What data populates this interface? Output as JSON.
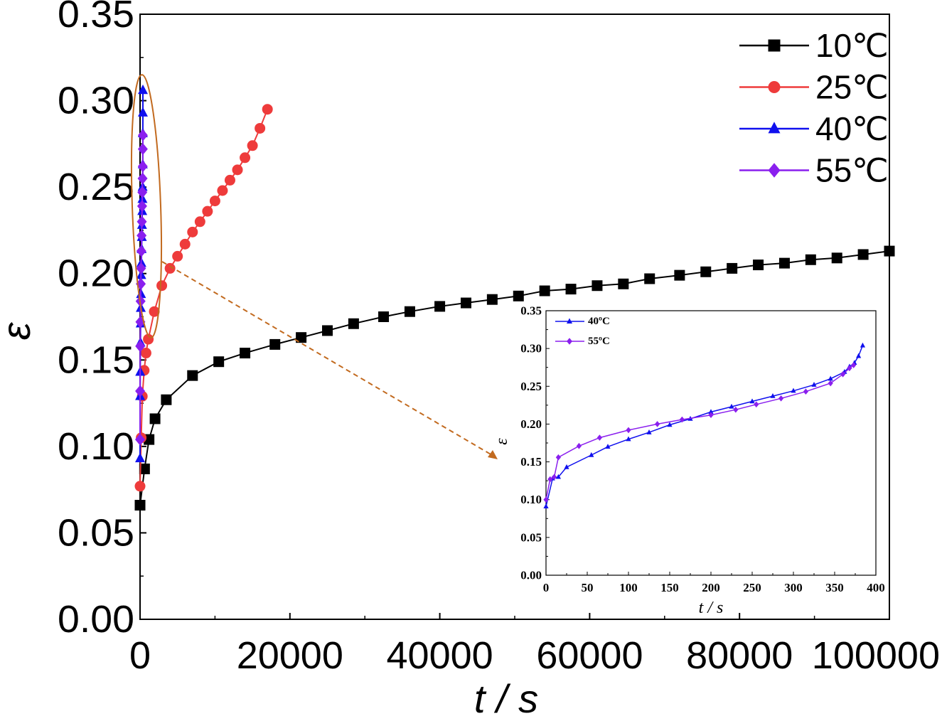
{
  "chart_data": [
    {
      "type": "line",
      "xlabel": "t / s",
      "ylabel": "ε",
      "xlim": [
        0,
        100000
      ],
      "ylim": [
        0,
        0.35
      ],
      "xticks": [
        "0",
        "20000",
        "40000",
        "60000",
        "80000",
        "100000"
      ],
      "yticks": [
        "0.00",
        "0.05",
        "0.10",
        "0.15",
        "0.20",
        "0.25",
        "0.30",
        "0.35"
      ],
      "legend_position": "top-right",
      "series": [
        {
          "name": "10℃",
          "color": "#000000",
          "marker": "square",
          "points": [
            [
              0,
              0.066
            ],
            [
              600,
              0.087
            ],
            [
              1200,
              0.104
            ],
            [
              2000,
              0.116
            ],
            [
              3500,
              0.127
            ],
            [
              7000,
              0.141
            ],
            [
              10500,
              0.149
            ],
            [
              14000,
              0.154
            ],
            [
              18000,
              0.159
            ],
            [
              21500,
              0.163
            ],
            [
              25000,
              0.167
            ],
            [
              28500,
              0.171
            ],
            [
              32500,
              0.175
            ],
            [
              36000,
              0.178
            ],
            [
              40000,
              0.181
            ],
            [
              43500,
              0.183
            ],
            [
              47000,
              0.185
            ],
            [
              50500,
              0.187
            ],
            [
              54000,
              0.19
            ],
            [
              57500,
              0.191
            ],
            [
              61000,
              0.193
            ],
            [
              64500,
              0.194
            ],
            [
              68000,
              0.197
            ],
            [
              72000,
              0.199
            ],
            [
              75500,
              0.201
            ],
            [
              79000,
              0.203
            ],
            [
              82500,
              0.205
            ],
            [
              86000,
              0.206
            ],
            [
              89500,
              0.208
            ],
            [
              93000,
              0.209
            ],
            [
              96500,
              0.211
            ],
            [
              100000,
              0.213
            ]
          ]
        },
        {
          "name": "25℃",
          "color": "#ee3b3b",
          "marker": "circle",
          "points": [
            [
              0,
              0.077
            ],
            [
              150,
              0.105
            ],
            [
              300,
              0.129
            ],
            [
              550,
              0.144
            ],
            [
              800,
              0.154
            ],
            [
              1100,
              0.162
            ],
            [
              1900,
              0.178
            ],
            [
              2900,
              0.193
            ],
            [
              4000,
              0.203
            ],
            [
              5000,
              0.21
            ],
            [
              6000,
              0.217
            ],
            [
              7000,
              0.224
            ],
            [
              8000,
              0.23
            ],
            [
              9000,
              0.236
            ],
            [
              10000,
              0.242
            ],
            [
              11000,
              0.248
            ],
            [
              12000,
              0.254
            ],
            [
              13000,
              0.26
            ],
            [
              14000,
              0.267
            ],
            [
              15000,
              0.274
            ],
            [
              16000,
              0.284
            ],
            [
              17000,
              0.295
            ]
          ]
        },
        {
          "name": "40℃",
          "color": "#1010ee",
          "marker": "triangle",
          "points": [
            [
              0,
              0.093
            ],
            [
              8,
              0.129
            ],
            [
              20,
              0.143
            ],
            [
              55,
              0.16
            ],
            [
              80,
              0.171
            ],
            [
              100,
              0.18
            ],
            [
              130,
              0.188
            ],
            [
              160,
              0.199
            ],
            [
              180,
              0.206
            ],
            [
              210,
              0.214
            ],
            [
              240,
              0.221
            ],
            [
              265,
              0.228
            ],
            [
              295,
              0.236
            ],
            [
              320,
              0.243
            ],
            [
              345,
              0.25
            ],
            [
              362,
              0.263
            ],
            [
              370,
              0.281
            ],
            [
              376,
              0.293
            ],
            [
              381,
              0.306
            ]
          ]
        },
        {
          "name": "55℃",
          "color": "#8a1fee",
          "marker": "diamond",
          "points": [
            [
              0,
              0.104
            ],
            [
              8,
              0.132
            ],
            [
              20,
              0.158
            ],
            [
              45,
              0.172
            ],
            [
              70,
              0.184
            ],
            [
              100,
              0.194
            ],
            [
              135,
              0.203
            ],
            [
              170,
              0.213
            ],
            [
              205,
              0.222
            ],
            [
              240,
              0.23
            ],
            [
              275,
              0.239
            ],
            [
              305,
              0.247
            ],
            [
              335,
              0.255
            ],
            [
              360,
              0.262
            ],
            [
              368,
              0.272
            ],
            [
              374,
              0.28
            ]
          ]
        }
      ]
    },
    {
      "type": "line",
      "role": "inset",
      "xlabel": "t / s",
      "ylabel": "ε",
      "xlim": [
        0,
        400
      ],
      "ylim": [
        0,
        0.35
      ],
      "xticks": [
        "0",
        "50",
        "100",
        "150",
        "200",
        "250",
        "300",
        "350",
        "400"
      ],
      "yticks": [
        "0.00",
        "0.05",
        "0.10",
        "0.15",
        "0.20",
        "0.25",
        "0.30",
        "0.35"
      ],
      "legend_position": "top-left",
      "series": [
        {
          "name": "40ºC",
          "color": "#1010ee",
          "marker": "triangle",
          "points": [
            [
              0,
              0.091
            ],
            [
              8,
              0.128
            ],
            [
              15,
              0.13
            ],
            [
              25,
              0.143
            ],
            [
              55,
              0.159
            ],
            [
              75,
              0.17
            ],
            [
              100,
              0.18
            ],
            [
              125,
              0.189
            ],
            [
              150,
              0.199
            ],
            [
              175,
              0.207
            ],
            [
              200,
              0.216
            ],
            [
              225,
              0.223
            ],
            [
              250,
              0.23
            ],
            [
              275,
              0.237
            ],
            [
              300,
              0.244
            ],
            [
              325,
              0.252
            ],
            [
              345,
              0.26
            ],
            [
              362,
              0.269
            ],
            [
              368,
              0.276
            ],
            [
              374,
              0.281
            ],
            [
              379,
              0.29
            ],
            [
              384,
              0.304
            ]
          ]
        },
        {
          "name": "55ºC",
          "color": "#8a1fee",
          "marker": "diamond",
          "points": [
            [
              0,
              0.1
            ],
            [
              5,
              0.127
            ],
            [
              10,
              0.13
            ],
            [
              15,
              0.156
            ],
            [
              40,
              0.171
            ],
            [
              65,
              0.182
            ],
            [
              100,
              0.192
            ],
            [
              135,
              0.2
            ],
            [
              165,
              0.206
            ],
            [
              200,
              0.212
            ],
            [
              230,
              0.219
            ],
            [
              255,
              0.226
            ],
            [
              285,
              0.234
            ],
            [
              315,
              0.243
            ],
            [
              345,
              0.254
            ],
            [
              360,
              0.266
            ],
            [
              368,
              0.274
            ],
            [
              373,
              0.278
            ]
          ]
        }
      ]
    }
  ]
}
